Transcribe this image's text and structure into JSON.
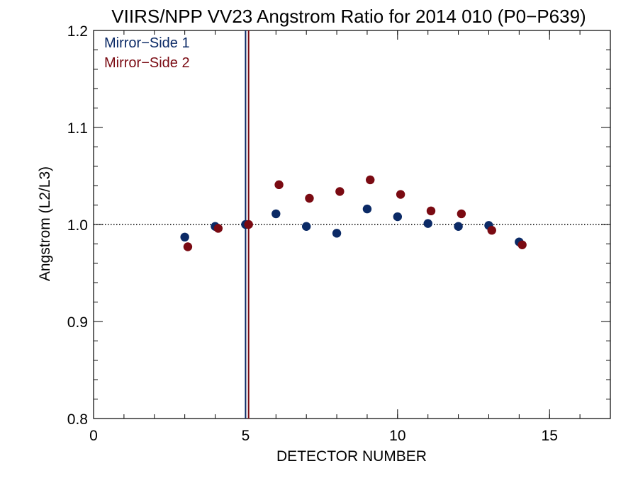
{
  "chart_data": {
    "type": "scatter",
    "title": "VIIRS/NPP VV23 Angstrom Ratio for 2014 010 (P0−P639)",
    "xlabel": "DETECTOR NUMBER",
    "ylabel": "Angstrom (L2/L3)",
    "xlim": [
      0,
      17
    ],
    "ylim": [
      0.8,
      1.2
    ],
    "xticks": [
      {
        "value": 0,
        "label": "0"
      },
      {
        "value": 5,
        "label": "5"
      },
      {
        "value": 10,
        "label": "10"
      },
      {
        "value": 15,
        "label": "15"
      }
    ],
    "yticks": [
      {
        "value": 0.8,
        "label": "0.8"
      },
      {
        "value": 0.9,
        "label": "0.9"
      },
      {
        "value": 1.0,
        "label": "1.0"
      },
      {
        "value": 1.1,
        "label": "1.1"
      },
      {
        "value": 1.2,
        "label": "1.2"
      }
    ],
    "x_minor_step": 1,
    "y_minor_step": 0.02,
    "reference_line": {
      "y": 1.0,
      "style": "dotted"
    },
    "vertical_lines": [
      {
        "x": 5.0,
        "color": "#0b2a66"
      },
      {
        "x": 5.1,
        "color": "#7a0a12"
      }
    ],
    "legend_position": "top-left",
    "series": [
      {
        "name": "Mirror−Side 1",
        "color": "#0b2a66",
        "x": [
          3,
          4,
          5,
          6,
          7,
          8,
          9,
          10,
          11,
          12,
          13,
          14
        ],
        "y": [
          0.987,
          0.998,
          1.0,
          1.011,
          0.998,
          0.991,
          1.016,
          1.008,
          1.001,
          0.998,
          0.999,
          0.982
        ]
      },
      {
        "name": "Mirror−Side 2",
        "color": "#7a0a12",
        "x": [
          3.1,
          4.1,
          5.1,
          6.1,
          7.1,
          8.1,
          9.1,
          10.1,
          11.1,
          12.1,
          13.1,
          14.1
        ],
        "y": [
          0.977,
          0.996,
          1.0,
          1.041,
          1.027,
          1.034,
          1.046,
          1.031,
          1.014,
          1.011,
          0.994,
          0.979
        ]
      }
    ],
    "grid": false
  }
}
